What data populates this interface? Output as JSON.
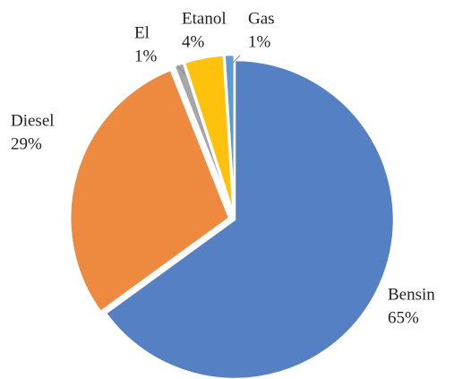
{
  "chart_data": {
    "type": "pie",
    "categories": [
      "Bensin",
      "Diesel",
      "El",
      "Etanol",
      "Gas"
    ],
    "values": [
      65,
      29,
      1,
      4,
      1
    ],
    "value_labels": [
      "65%",
      "29%",
      "1%",
      "4%",
      "1%"
    ],
    "colors": [
      "#5580c4",
      "#ee8a3f",
      "#a6a6a6",
      "#fec20c",
      "#5c9bd6"
    ]
  }
}
